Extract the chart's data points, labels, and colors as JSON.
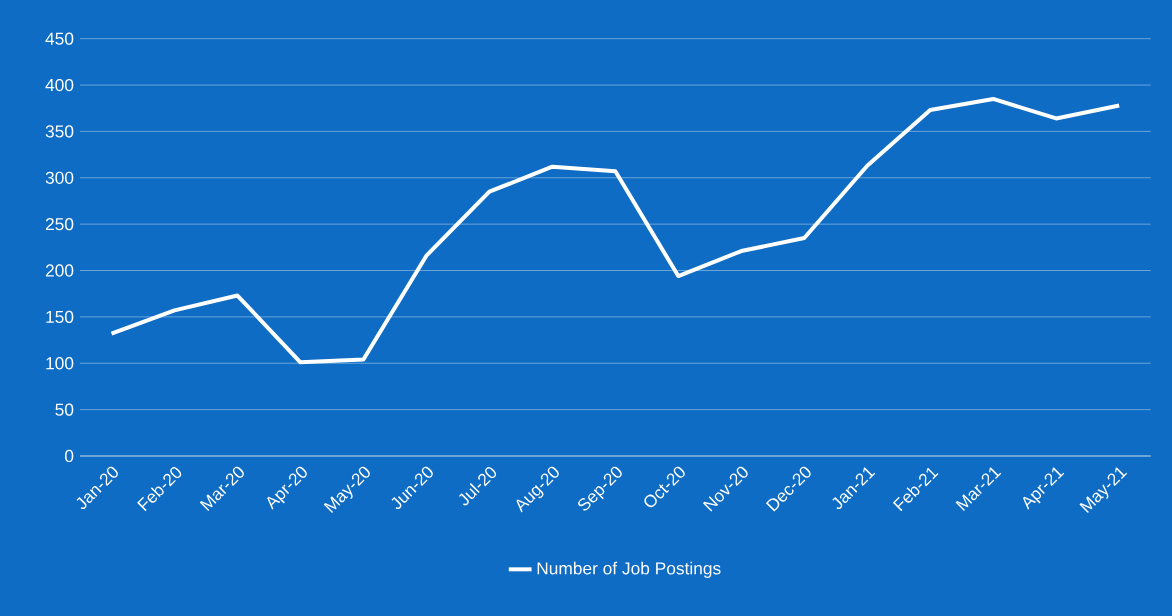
{
  "chart_data": {
    "type": "line",
    "categories": [
      "Jan-20",
      "Feb-20",
      "Mar-20",
      "Apr-20",
      "May-20",
      "Jun-20",
      "Jul-20",
      "Aug-20",
      "Sep-20",
      "Oct-20",
      "Nov-20",
      "Dec-20",
      "Jan-21",
      "Feb-21",
      "Mar-21",
      "Apr-21",
      "May-21"
    ],
    "series": [
      {
        "name": "Number of Job Postings",
        "color": "#ffffff",
        "values": [
          132,
          157,
          173,
          101,
          104,
          216,
          285,
          312,
          307,
          194,
          221,
          235,
          313,
          373,
          385,
          364,
          378
        ]
      }
    ],
    "ylim": [
      0,
      450
    ],
    "yticks": [
      0,
      50,
      100,
      150,
      200,
      250,
      300,
      350,
      400,
      450
    ],
    "grid": "y",
    "legend": "bottom"
  }
}
